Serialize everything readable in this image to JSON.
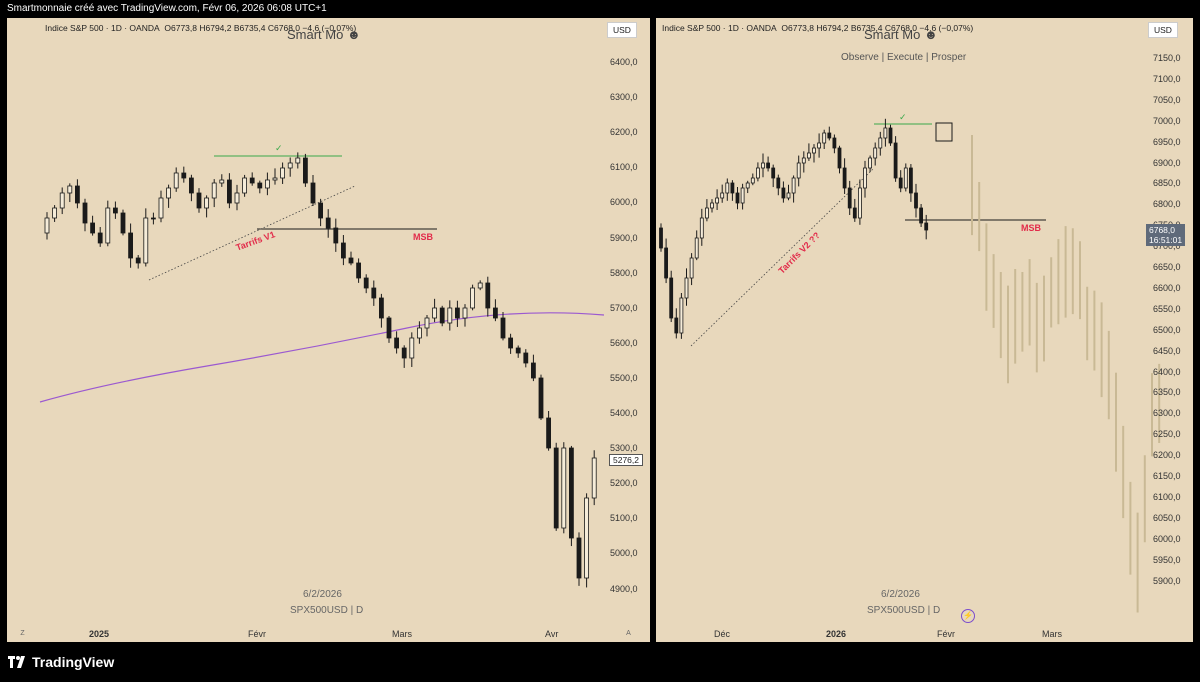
{
  "topbar": {
    "text": "Smartmonnaie créé avec TradingView.com, Févr 06, 2026 06:08 UTC+1"
  },
  "footer": {
    "brand": "TradingView"
  },
  "panes": [
    {
      "symbol": "Indice S&P 500 · 1D · OANDA",
      "ohlc": "O6773,8  H6794,2  B6735,4  C6768,0  −4,6 (−0,07%)",
      "watermark": "Smart Mo",
      "tagline": "",
      "currency": "USD",
      "y_labels": [
        "6400,0",
        "6300,0",
        "6200,0",
        "6100,0",
        "6000,0",
        "5900,0",
        "5800,0",
        "5700,0",
        "5600,0",
        "5500,0",
        "5400,0",
        "5300,0",
        "5200,0",
        "5100,0",
        "5000,0",
        "4900,0"
      ],
      "x_labels": [
        "2025",
        "Févr",
        "Mars",
        "Avr"
      ],
      "price_box": "5276,2",
      "annotation_tariffs": "Tarrifs V1",
      "annotation_msb": "MSB",
      "check": "✓",
      "date_label": "6/2/2026",
      "symbol_label": "SPX500USD | D",
      "zoom_left": "Z",
      "zoom_right": "A"
    },
    {
      "symbol": "Indice S&P 500 · 1D · OANDA",
      "ohlc": "O6773,8  H6794,2  B6735,4  C6768,0  −4,6 (−0,07%)",
      "watermark": "Smart Mo",
      "tagline": "Observe |  Execute |  Prosper",
      "currency": "USD",
      "y_labels": [
        "7150,0",
        "7100,0",
        "7050,0",
        "7000,0",
        "6950,0",
        "6900,0",
        "6850,0",
        "6800,0",
        "6750,0",
        "6700,0",
        "6650,0",
        "6600,0",
        "6550,0",
        "6500,0",
        "6450,0",
        "6400,0",
        "6350,0",
        "6300,0",
        "6250,0",
        "6200,0",
        "6150,0",
        "6100,0",
        "6050,0",
        "6000,0",
        "5950,0",
        "5900,0"
      ],
      "x_labels": [
        "Déc",
        "2026",
        "Févr",
        "Mars"
      ],
      "price_box": "6768,0",
      "price_timer": "16:51:01",
      "annotation_tariffs": "Tarrifs V2 ??",
      "annotation_msb": "MSB",
      "check": "✓",
      "date_label": "6/2/2026",
      "symbol_label": "SPX500USD | D",
      "lightning": "⚡"
    }
  ],
  "colors": {
    "pane_bg": "#e8d8bc",
    "candle_dark": "#1a1a1a",
    "candle_light": "#f5ecd9",
    "ma": "#9b59d0",
    "green_line": "#3aa84a",
    "red": "#e22b4a",
    "ghost": "#c9b995"
  }
}
